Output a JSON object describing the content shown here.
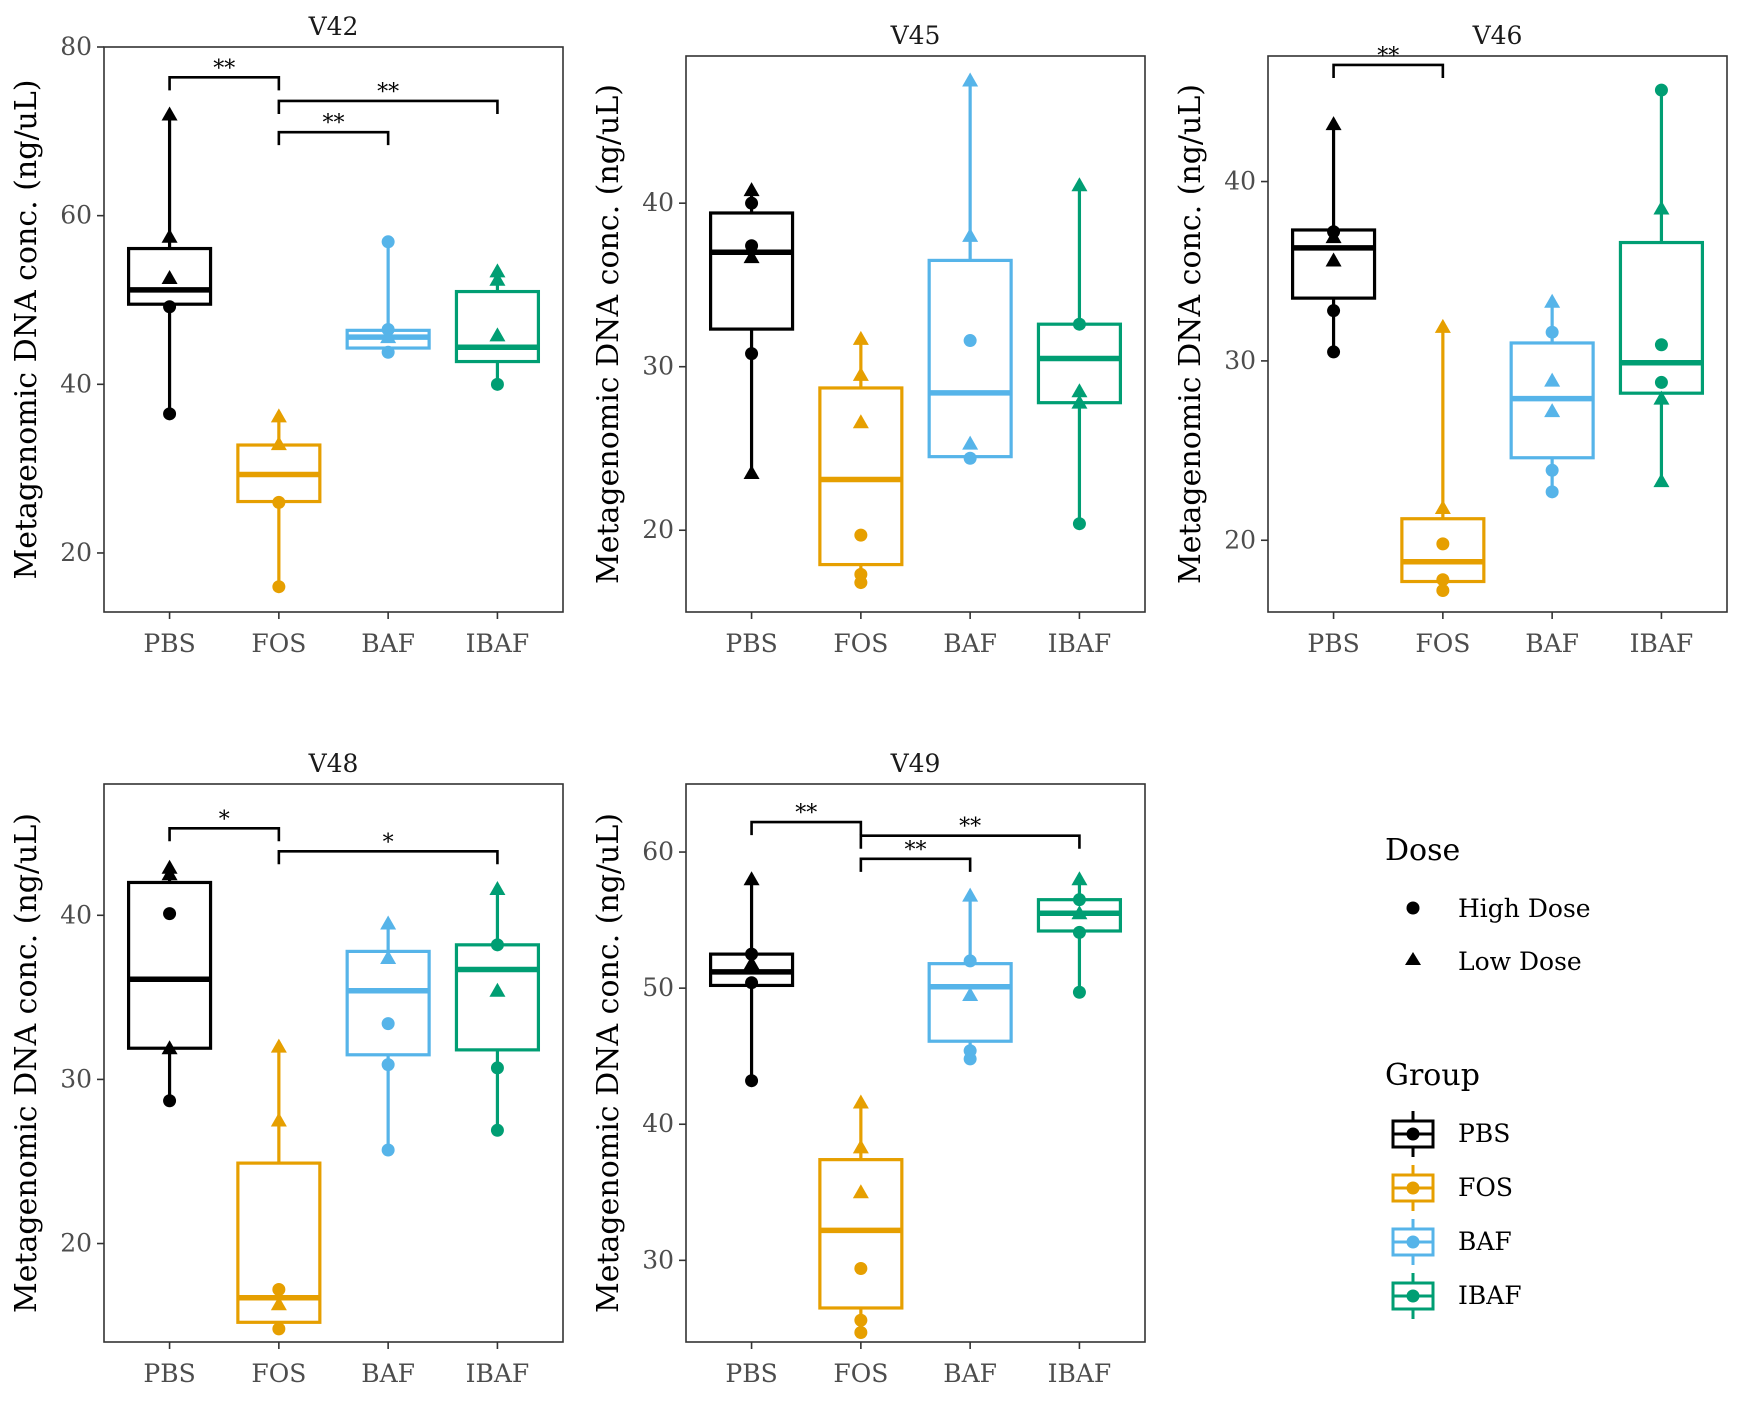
{
  "figure": {
    "ylabel": "Metagenomic DNA conc. (ng/uL)",
    "colors": {
      "PBS": "#000000",
      "FOS": "#E69F00",
      "BAF": "#56B4E9",
      "IBAF": "#009E73"
    }
  },
  "legend": {
    "dose": {
      "title": "Dose",
      "items": [
        {
          "label": "High Dose",
          "shape": "circle"
        },
        {
          "label": "Low Dose",
          "shape": "triangle"
        }
      ]
    },
    "group": {
      "title": "Group",
      "items": [
        {
          "label": "PBS",
          "color": "#000000"
        },
        {
          "label": "FOS",
          "color": "#E69F00"
        },
        {
          "label": "BAF",
          "color": "#56B4E9"
        },
        {
          "label": "IBAF",
          "color": "#009E73"
        }
      ]
    }
  },
  "chart_data": [
    {
      "type": "box",
      "title": "V42",
      "xlabel": "",
      "ylabel": "Metagenomic DNA conc. (ng/uL)",
      "categories": [
        "PBS",
        "FOS",
        "BAF",
        "IBAF"
      ],
      "ylim": [
        13,
        80
      ],
      "yticks": [
        20,
        40,
        60,
        80
      ],
      "boxes": [
        {
          "group": "PBS",
          "min": 36.5,
          "q1": 49.5,
          "median": 51.2,
          "q3": 56.1,
          "max": 72.0
        },
        {
          "group": "FOS",
          "min": 16.0,
          "q1": 26.1,
          "median": 29.3,
          "q3": 32.8,
          "max": 36.2
        },
        {
          "group": "BAF",
          "min": 43.8,
          "q1": 44.3,
          "median": 45.6,
          "q3": 46.4,
          "max": 56.9
        },
        {
          "group": "IBAF",
          "min": 40.0,
          "q1": 42.7,
          "median": 44.4,
          "q3": 51.0,
          "max": 53.4
        }
      ],
      "points": [
        {
          "group": "PBS",
          "dose": "Low Dose",
          "value": 72.0
        },
        {
          "group": "PBS",
          "dose": "Low Dose",
          "value": 57.5
        },
        {
          "group": "PBS",
          "dose": "Low Dose",
          "value": 52.6
        },
        {
          "group": "PBS",
          "dose": "High Dose",
          "value": 49.2
        },
        {
          "group": "PBS",
          "dose": "High Dose",
          "value": 36.5
        },
        {
          "group": "FOS",
          "dose": "Low Dose",
          "value": 36.2
        },
        {
          "group": "FOS",
          "dose": "Low Dose",
          "value": 32.9
        },
        {
          "group": "FOS",
          "dose": "High Dose",
          "value": 26.0
        },
        {
          "group": "FOS",
          "dose": "High Dose",
          "value": 16.0
        },
        {
          "group": "BAF",
          "dose": "High Dose",
          "value": 56.9
        },
        {
          "group": "BAF",
          "dose": "High Dose",
          "value": 46.5
        },
        {
          "group": "BAF",
          "dose": "Low Dose",
          "value": 45.6
        },
        {
          "group": "BAF",
          "dose": "High Dose",
          "value": 43.8
        },
        {
          "group": "IBAF",
          "dose": "Low Dose",
          "value": 53.4
        },
        {
          "group": "IBAF",
          "dose": "Low Dose",
          "value": 52.4
        },
        {
          "group": "IBAF",
          "dose": "Low Dose",
          "value": 45.8
        },
        {
          "group": "IBAF",
          "dose": "High Dose",
          "value": 40.0
        }
      ],
      "significance": [
        {
          "from": "PBS",
          "to": "FOS",
          "label": "**",
          "y": 76.4
        },
        {
          "from": "FOS",
          "to": "BAF",
          "label": "**",
          "y": 69.9
        },
        {
          "from": "FOS",
          "to": "IBAF",
          "label": "**",
          "y": 73.6
        }
      ]
    },
    {
      "type": "box",
      "title": "V45",
      "xlabel": "",
      "ylabel": "Metagenomic DNA conc. (ng/uL)",
      "categories": [
        "PBS",
        "FOS",
        "BAF",
        "IBAF"
      ],
      "ylim": [
        15,
        49
      ],
      "yticks": [
        20,
        30,
        40
      ],
      "boxes": [
        {
          "group": "PBS",
          "min": 23.5,
          "q1": 32.3,
          "median": 37.0,
          "q3": 39.4,
          "max": 40.8
        },
        {
          "group": "FOS",
          "min": 16.8,
          "q1": 17.9,
          "median": 23.1,
          "q3": 28.7,
          "max": 31.7
        },
        {
          "group": "BAF",
          "min": 24.4,
          "q1": 24.5,
          "median": 28.4,
          "q3": 36.5,
          "max": 47.5
        },
        {
          "group": "IBAF",
          "min": 20.4,
          "q1": 27.8,
          "median": 30.5,
          "q3": 32.6,
          "max": 41.1
        }
      ],
      "points": [
        {
          "group": "PBS",
          "dose": "Low Dose",
          "value": 40.8
        },
        {
          "group": "PBS",
          "dose": "High Dose",
          "value": 40.0
        },
        {
          "group": "PBS",
          "dose": "High Dose",
          "value": 37.4
        },
        {
          "group": "PBS",
          "dose": "Low Dose",
          "value": 36.7
        },
        {
          "group": "PBS",
          "dose": "High Dose",
          "value": 30.8
        },
        {
          "group": "PBS",
          "dose": "Low Dose",
          "value": 23.5
        },
        {
          "group": "FOS",
          "dose": "Low Dose",
          "value": 31.7
        },
        {
          "group": "FOS",
          "dose": "Low Dose",
          "value": 29.5
        },
        {
          "group": "FOS",
          "dose": "Low Dose",
          "value": 26.6
        },
        {
          "group": "FOS",
          "dose": "High Dose",
          "value": 19.7
        },
        {
          "group": "FOS",
          "dose": "High Dose",
          "value": 17.3
        },
        {
          "group": "FOS",
          "dose": "High Dose",
          "value": 16.8
        },
        {
          "group": "BAF",
          "dose": "Low Dose",
          "value": 47.5
        },
        {
          "group": "BAF",
          "dose": "Low Dose",
          "value": 38.0
        },
        {
          "group": "BAF",
          "dose": "High Dose",
          "value": 31.6
        },
        {
          "group": "BAF",
          "dose": "Low Dose",
          "value": 25.3
        },
        {
          "group": "BAF",
          "dose": "High Dose",
          "value": 24.4
        },
        {
          "group": "IBAF",
          "dose": "Low Dose",
          "value": 41.1
        },
        {
          "group": "IBAF",
          "dose": "High Dose",
          "value": 32.6
        },
        {
          "group": "IBAF",
          "dose": "Low Dose",
          "value": 28.5
        },
        {
          "group": "IBAF",
          "dose": "Low Dose",
          "value": 27.8
        },
        {
          "group": "IBAF",
          "dose": "High Dose",
          "value": 20.4
        }
      ],
      "significance": []
    },
    {
      "type": "box",
      "title": "V46",
      "xlabel": "",
      "ylabel": "Metagenomic DNA conc. (ng/uL)",
      "categories": [
        "PBS",
        "FOS",
        "BAF",
        "IBAF"
      ],
      "ylim": [
        16,
        47
      ],
      "yticks": [
        20,
        30,
        40
      ],
      "boxes": [
        {
          "group": "PBS",
          "min": 30.5,
          "q1": 33.5,
          "median": 36.3,
          "q3": 37.3,
          "max": 43.2
        },
        {
          "group": "FOS",
          "min": 17.2,
          "q1": 17.7,
          "median": 18.8,
          "q3": 21.2,
          "max": 31.9
        },
        {
          "group": "BAF",
          "min": 22.7,
          "q1": 24.6,
          "median": 27.9,
          "q3": 31.0,
          "max": 33.3
        },
        {
          "group": "IBAF",
          "min": 23.3,
          "q1": 28.2,
          "median": 29.9,
          "q3": 36.6,
          "max": 45.1
        }
      ],
      "points": [
        {
          "group": "PBS",
          "dose": "Low Dose",
          "value": 43.2
        },
        {
          "group": "PBS",
          "dose": "High Dose",
          "value": 37.2
        },
        {
          "group": "PBS",
          "dose": "Low Dose",
          "value": 36.9
        },
        {
          "group": "PBS",
          "dose": "Low Dose",
          "value": 35.6
        },
        {
          "group": "PBS",
          "dose": "High Dose",
          "value": 32.8
        },
        {
          "group": "PBS",
          "dose": "High Dose",
          "value": 30.5
        },
        {
          "group": "FOS",
          "dose": "Low Dose",
          "value": 31.9
        },
        {
          "group": "FOS",
          "dose": "Low Dose",
          "value": 21.8
        },
        {
          "group": "FOS",
          "dose": "High Dose",
          "value": 19.8
        },
        {
          "group": "FOS",
          "dose": "High Dose",
          "value": 17.8
        },
        {
          "group": "FOS",
          "dose": "High Dose",
          "value": 17.2
        },
        {
          "group": "BAF",
          "dose": "Low Dose",
          "value": 33.3
        },
        {
          "group": "BAF",
          "dose": "High Dose",
          "value": 31.6
        },
        {
          "group": "BAF",
          "dose": "Low Dose",
          "value": 28.9
        },
        {
          "group": "BAF",
          "dose": "Low Dose",
          "value": 27.2
        },
        {
          "group": "BAF",
          "dose": "High Dose",
          "value": 23.9
        },
        {
          "group": "BAF",
          "dose": "High Dose",
          "value": 22.7
        },
        {
          "group": "IBAF",
          "dose": "High Dose",
          "value": 45.1
        },
        {
          "group": "IBAF",
          "dose": "Low Dose",
          "value": 38.5
        },
        {
          "group": "IBAF",
          "dose": "High Dose",
          "value": 30.9
        },
        {
          "group": "IBAF",
          "dose": "High Dose",
          "value": 28.8
        },
        {
          "group": "IBAF",
          "dose": "Low Dose",
          "value": 27.9
        },
        {
          "group": "IBAF",
          "dose": "Low Dose",
          "value": 23.3
        }
      ],
      "significance": [
        {
          "from": "PBS",
          "to": "FOS",
          "label": "**",
          "y": 46.5
        }
      ]
    },
    {
      "type": "box",
      "title": "V48",
      "xlabel": "",
      "ylabel": "Metagenomic DNA conc. (ng/uL)",
      "categories": [
        "PBS",
        "FOS",
        "BAF",
        "IBAF"
      ],
      "ylim": [
        14,
        48
      ],
      "yticks": [
        20,
        30,
        40
      ],
      "boxes": [
        {
          "group": "PBS",
          "min": 28.7,
          "q1": 31.9,
          "median": 36.1,
          "q3": 42.0,
          "max": 42.9
        },
        {
          "group": "FOS",
          "min": 14.8,
          "q1": 15.2,
          "median": 16.7,
          "q3": 24.9,
          "max": 32.0
        },
        {
          "group": "BAF",
          "min": 25.7,
          "q1": 31.5,
          "median": 35.4,
          "q3": 37.8,
          "max": 39.5
        },
        {
          "group": "IBAF",
          "min": 26.9,
          "q1": 31.8,
          "median": 36.7,
          "q3": 38.2,
          "max": 41.6
        }
      ],
      "points": [
        {
          "group": "PBS",
          "dose": "Low Dose",
          "value": 42.9
        },
        {
          "group": "PBS",
          "dose": "Low Dose",
          "value": 42.5
        },
        {
          "group": "PBS",
          "dose": "High Dose",
          "value": 40.1
        },
        {
          "group": "PBS",
          "dose": "Low Dose",
          "value": 31.9
        },
        {
          "group": "PBS",
          "dose": "High Dose",
          "value": 28.7
        },
        {
          "group": "FOS",
          "dose": "Low Dose",
          "value": 32.0
        },
        {
          "group": "FOS",
          "dose": "Low Dose",
          "value": 27.5
        },
        {
          "group": "FOS",
          "dose": "High Dose",
          "value": 17.2
        },
        {
          "group": "FOS",
          "dose": "Low Dose",
          "value": 16.3
        },
        {
          "group": "FOS",
          "dose": "High Dose",
          "value": 14.8
        },
        {
          "group": "BAF",
          "dose": "Low Dose",
          "value": 39.5
        },
        {
          "group": "BAF",
          "dose": "Low Dose",
          "value": 37.4
        },
        {
          "group": "BAF",
          "dose": "High Dose",
          "value": 33.4
        },
        {
          "group": "BAF",
          "dose": "High Dose",
          "value": 30.9
        },
        {
          "group": "BAF",
          "dose": "High Dose",
          "value": 25.7
        },
        {
          "group": "IBAF",
          "dose": "Low Dose",
          "value": 41.6
        },
        {
          "group": "IBAF",
          "dose": "High Dose",
          "value": 38.2
        },
        {
          "group": "IBAF",
          "dose": "Low Dose",
          "value": 35.4
        },
        {
          "group": "IBAF",
          "dose": "High Dose",
          "value": 30.7
        },
        {
          "group": "IBAF",
          "dose": "High Dose",
          "value": 26.9
        }
      ],
      "significance": [
        {
          "from": "PBS",
          "to": "FOS",
          "label": "*",
          "y": 45.3
        },
        {
          "from": "FOS",
          "to": "IBAF",
          "label": "*",
          "y": 43.9
        }
      ]
    },
    {
      "type": "box",
      "title": "V49",
      "xlabel": "",
      "ylabel": "Metagenomic DNA conc. (ng/uL)",
      "categories": [
        "PBS",
        "FOS",
        "BAF",
        "IBAF"
      ],
      "ylim": [
        24,
        65
      ],
      "yticks": [
        30,
        40,
        50,
        60
      ],
      "boxes": [
        {
          "group": "PBS",
          "min": 43.2,
          "q1": 50.2,
          "median": 51.2,
          "q3": 52.5,
          "max": 58.0
        },
        {
          "group": "FOS",
          "min": 24.7,
          "q1": 26.5,
          "median": 32.2,
          "q3": 37.4,
          "max": 41.6
        },
        {
          "group": "BAF",
          "min": 44.8,
          "q1": 46.1,
          "median": 50.1,
          "q3": 51.8,
          "max": 56.8
        },
        {
          "group": "IBAF",
          "min": 49.7,
          "q1": 54.2,
          "median": 55.5,
          "q3": 56.5,
          "max": 58.0
        }
      ],
      "points": [
        {
          "group": "PBS",
          "dose": "Low Dose",
          "value": 58.0
        },
        {
          "group": "PBS",
          "dose": "High Dose",
          "value": 52.5
        },
        {
          "group": "PBS",
          "dose": "Low Dose",
          "value": 51.8
        },
        {
          "group": "PBS",
          "dose": "High Dose",
          "value": 50.4
        },
        {
          "group": "PBS",
          "dose": "High Dose",
          "value": 43.2
        },
        {
          "group": "FOS",
          "dose": "Low Dose",
          "value": 41.6
        },
        {
          "group": "FOS",
          "dose": "Low Dose",
          "value": 38.3
        },
        {
          "group": "FOS",
          "dose": "Low Dose",
          "value": 35.0
        },
        {
          "group": "FOS",
          "dose": "High Dose",
          "value": 29.4
        },
        {
          "group": "FOS",
          "dose": "High Dose",
          "value": 25.6
        },
        {
          "group": "FOS",
          "dose": "High Dose",
          "value": 24.7
        },
        {
          "group": "BAF",
          "dose": "Low Dose",
          "value": 56.8
        },
        {
          "group": "BAF",
          "dose": "High Dose",
          "value": 52.0
        },
        {
          "group": "BAF",
          "dose": "Low Dose",
          "value": 49.5
        },
        {
          "group": "BAF",
          "dose": "High Dose",
          "value": 45.4
        },
        {
          "group": "BAF",
          "dose": "High Dose",
          "value": 44.8
        },
        {
          "group": "IBAF",
          "dose": "Low Dose",
          "value": 58.0
        },
        {
          "group": "IBAF",
          "dose": "High Dose",
          "value": 56.5
        },
        {
          "group": "IBAF",
          "dose": "Low Dose",
          "value": 55.5
        },
        {
          "group": "IBAF",
          "dose": "High Dose",
          "value": 54.1
        },
        {
          "group": "IBAF",
          "dose": "High Dose",
          "value": 49.7
        }
      ],
      "significance": [
        {
          "from": "PBS",
          "to": "FOS",
          "label": "**",
          "y": 62.2
        },
        {
          "from": "FOS",
          "to": "BAF",
          "label": "**",
          "y": 59.5
        },
        {
          "from": "FOS",
          "to": "IBAF",
          "label": "**",
          "y": 61.2
        }
      ]
    }
  ]
}
